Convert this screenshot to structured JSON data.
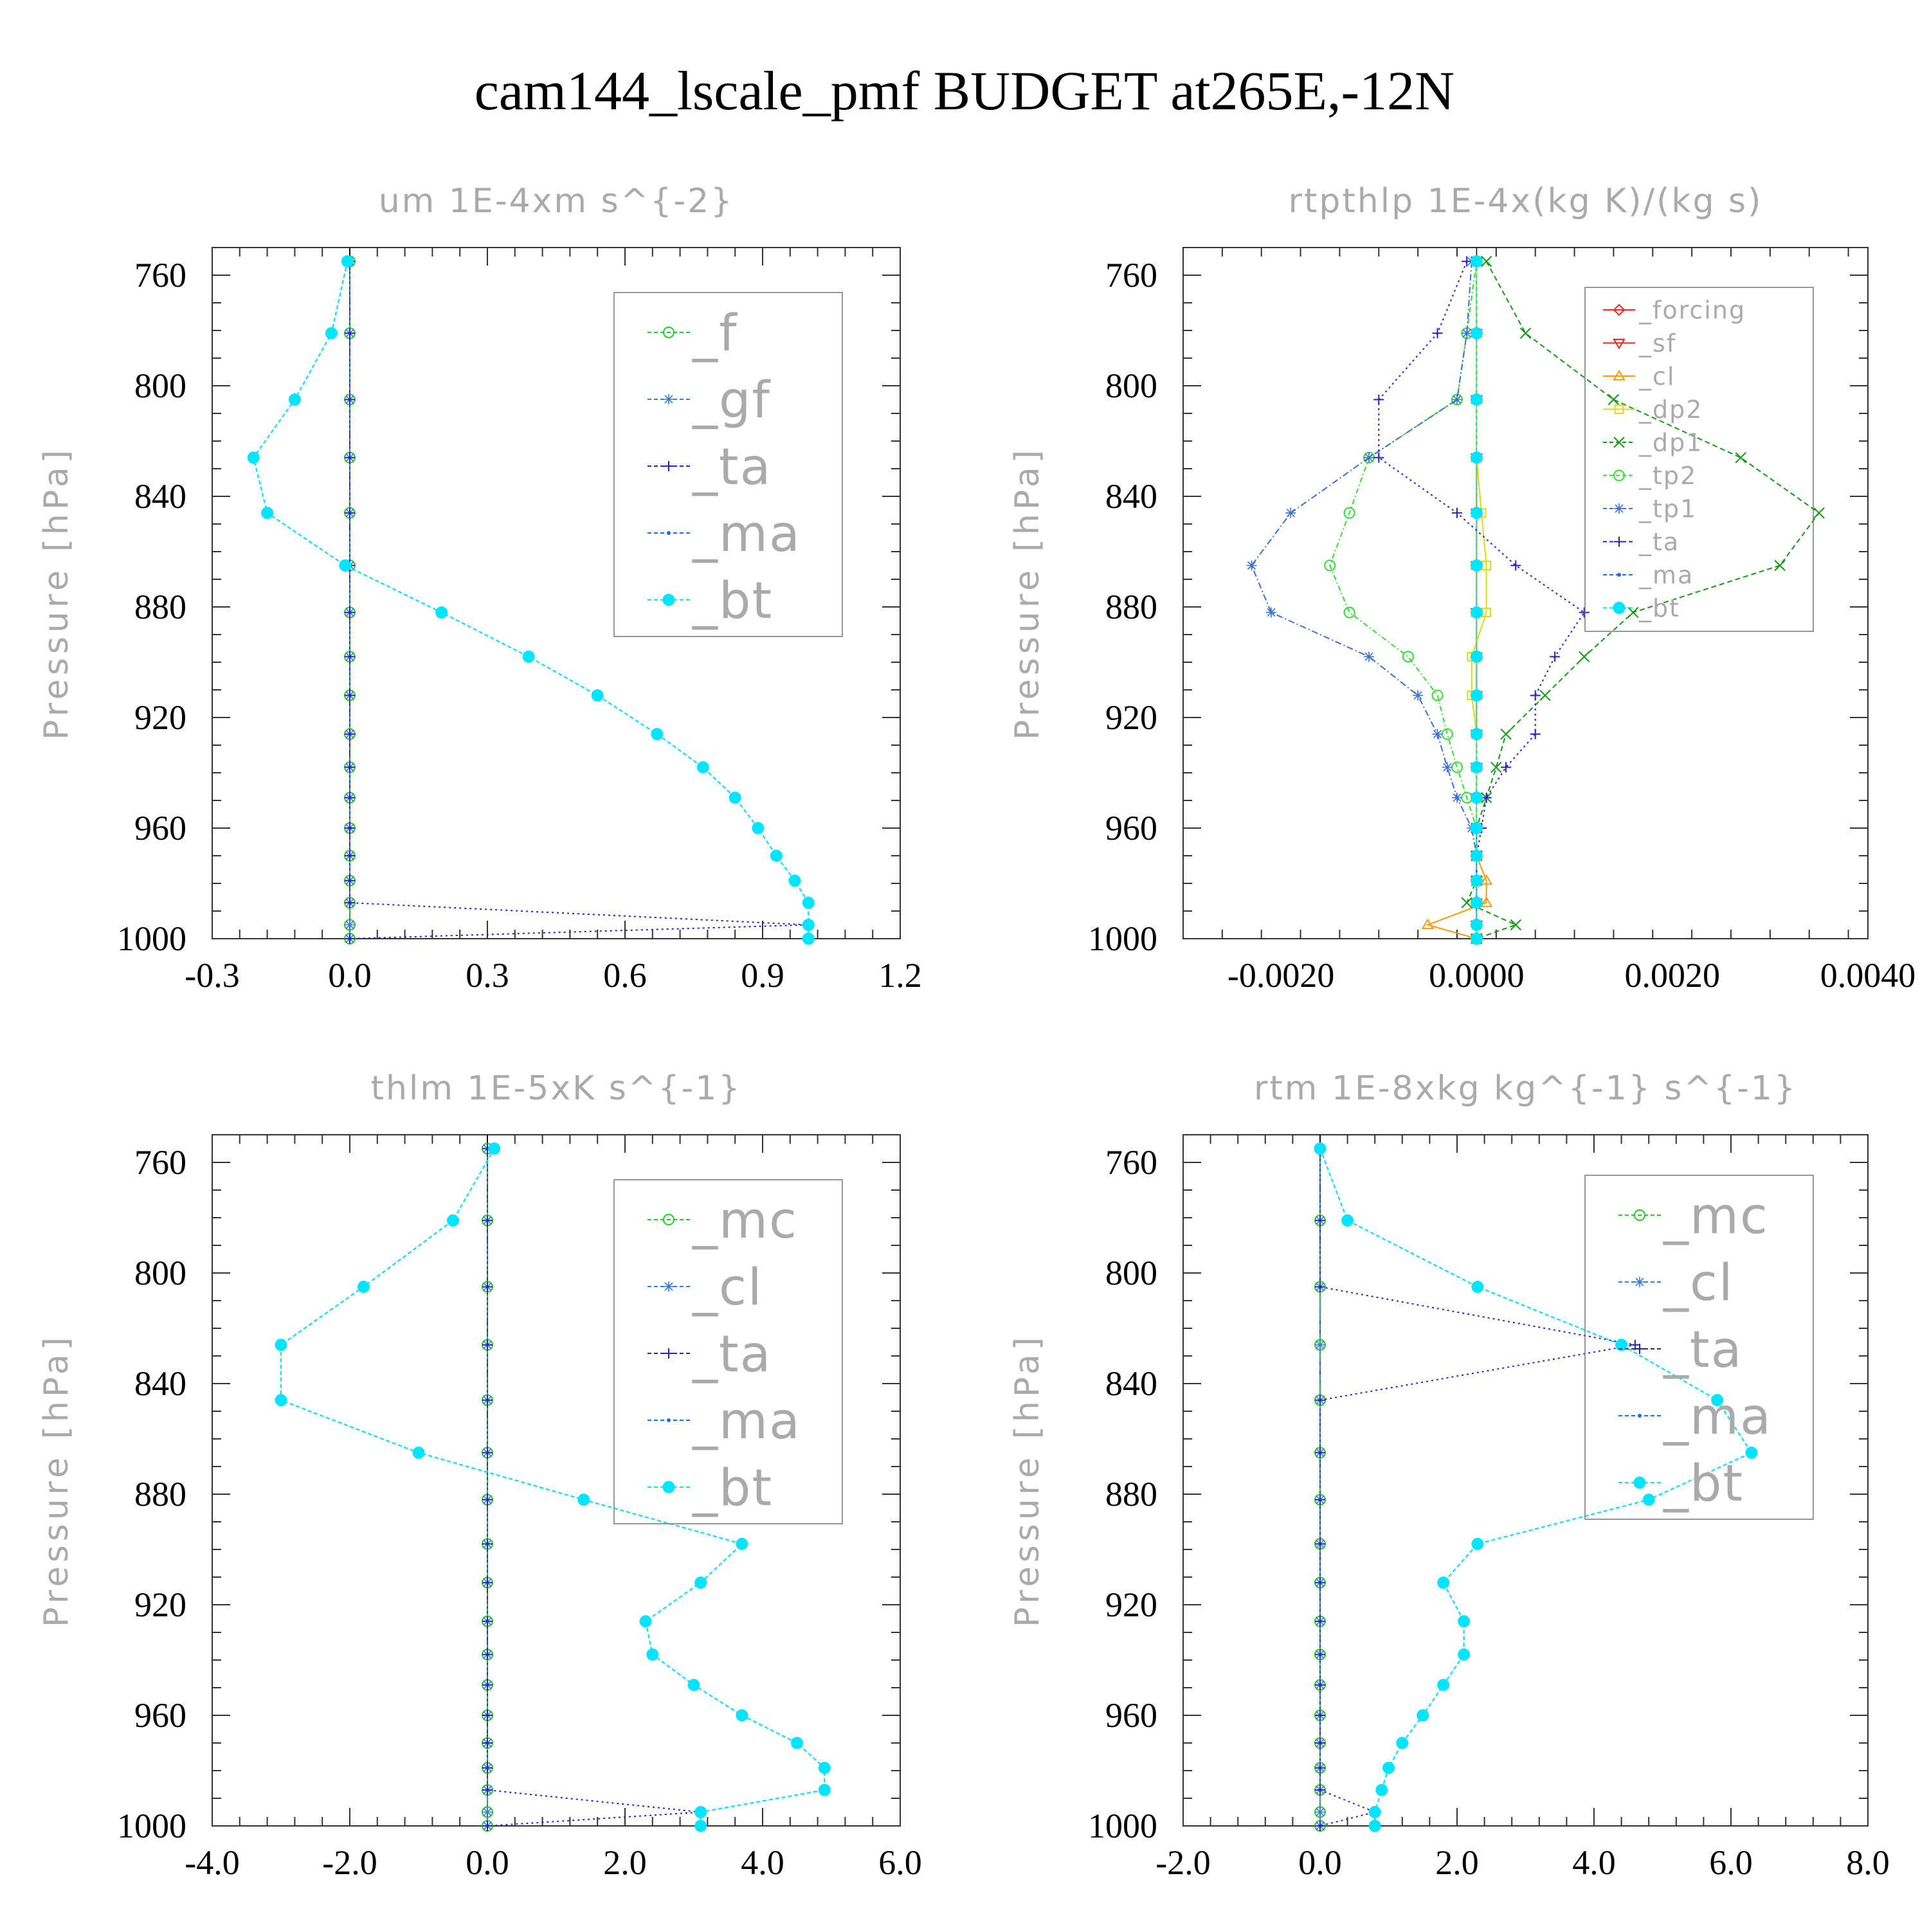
{
  "title": "cam144_lscale_pmf  BUDGET at265E,-12N",
  "colors": {
    "f": "#22cc22",
    "gf": "#3a7bd5",
    "ta": "#2222cc",
    "ma": "#1a6fe8",
    "bt": "#00e5ff",
    "forcing": "#ff2222",
    "sf": "#ee2222",
    "cl_orange": "#ff9900",
    "dp2": "#dddd00",
    "dp1": "#119911",
    "tp2": "#33dd33",
    "tp1": "#3a6fd5",
    "mc": "#22cc22",
    "cl": "#3a7bd5",
    "frame": "#333333",
    "title_gray": "#aaaaaa",
    "vline": "#000000"
  },
  "chart_data": [
    {
      "type": "line",
      "title": "um  1E-4xm s^{-2}",
      "ylabel": "Pressure [hPa]",
      "xlim": [
        -0.3,
        1.2
      ],
      "ylim": [
        1000,
        750
      ],
      "xticks": [
        "-0.3",
        "0.0",
        "0.3",
        "0.6",
        "0.9",
        "1.2"
      ],
      "yticks": [
        "760",
        "800",
        "840",
        "880",
        "920",
        "960",
        "1000"
      ],
      "pressure": [
        755,
        781,
        805,
        826,
        846,
        865,
        882,
        898,
        912,
        926,
        938,
        949,
        960,
        970,
        979,
        987,
        995,
        1000
      ],
      "series": [
        {
          "name": "_f",
          "color_key": "f",
          "marker": "circle",
          "dash": "10,6",
          "values": [
            0,
            0,
            0,
            0,
            0,
            0,
            0,
            0,
            0,
            0,
            0,
            0,
            0,
            0,
            0,
            0,
            0,
            0
          ]
        },
        {
          "name": "_gf",
          "color_key": "gf",
          "marker": "star",
          "dash": "8,5",
          "values": [
            0,
            0,
            0,
            0,
            0,
            0,
            0,
            0,
            0,
            0,
            0,
            0,
            0,
            0,
            0,
            0,
            0,
            0
          ]
        },
        {
          "name": "_ta",
          "color_key": "ta",
          "marker": "plus",
          "dash": "3,5",
          "values": [
            0,
            0,
            0,
            0,
            0,
            0,
            0,
            0,
            0,
            0,
            0,
            0,
            0,
            0,
            0,
            0,
            0.999,
            0
          ]
        },
        {
          "name": "_ma",
          "color_key": "ma",
          "marker": "dot",
          "dash": "6,4",
          "values": [
            -0.005,
            -0.04,
            -0.12,
            -0.21,
            -0.18,
            -0.01,
            0.2,
            0.39,
            0.54,
            0.67,
            0.77,
            0.84,
            0.89,
            0.93,
            0.97,
            1.0,
            1.0,
            1.0
          ]
        },
        {
          "name": "_bt",
          "color_key": "bt",
          "marker": "filled",
          "dash": "6,4",
          "values": [
            -0.005,
            -0.04,
            -0.12,
            -0.21,
            -0.18,
            -0.01,
            0.2,
            0.39,
            0.54,
            0.67,
            0.77,
            0.84,
            0.89,
            0.93,
            0.97,
            1.0,
            1.0,
            1.0
          ]
        }
      ],
      "legend": {
        "items": [
          "_f",
          "_gf",
          "_ta",
          "_ma",
          "_bt"
        ]
      }
    },
    {
      "type": "line",
      "title": "rtpthlp  1E-4x(kg K)/(kg s)",
      "ylabel": "Pressure [hPa]",
      "xlim": [
        -0.003,
        0.004
      ],
      "ylim": [
        1000,
        750
      ],
      "xticks": [
        "-0.0020",
        "0.0000",
        "0.0020",
        "0.0040"
      ],
      "yticks": [
        "760",
        "800",
        "840",
        "880",
        "920",
        "960",
        "1000"
      ],
      "pressure": [
        755,
        781,
        805,
        826,
        846,
        865,
        882,
        898,
        912,
        926,
        938,
        949,
        960,
        970,
        979,
        987,
        995,
        1000
      ],
      "series": [
        {
          "name": "_forcing",
          "color_key": "forcing",
          "marker": "diamond",
          "dash": "",
          "values": [
            0,
            0,
            0,
            0,
            0,
            0,
            0,
            0,
            0,
            0,
            0,
            0,
            0,
            0,
            0,
            0,
            0,
            0
          ]
        },
        {
          "name": "_sf",
          "color_key": "sf",
          "marker": "tri-down",
          "dash": "",
          "values": [
            0,
            0,
            0,
            0,
            0,
            0,
            0,
            0,
            0,
            0,
            0,
            0,
            0,
            0,
            0,
            0,
            0,
            0
          ]
        },
        {
          "name": "_cl",
          "color_key": "cl_orange",
          "marker": "tri-up",
          "dash": "",
          "values": [
            0,
            0,
            0,
            0,
            0,
            0,
            0,
            0,
            0,
            0,
            0,
            0,
            0,
            0,
            0.0001,
            0.0001,
            -0.0005,
            0
          ]
        },
        {
          "name": "_dp2",
          "color_key": "dp2",
          "marker": "square",
          "dash": "",
          "values": [
            0,
            0,
            0,
            0,
            5e-05,
            0.0001,
            0.0001,
            -5e-05,
            -5e-05,
            0,
            0,
            0,
            0,
            0,
            0,
            0,
            0,
            0
          ]
        },
        {
          "name": "_dp1",
          "color_key": "dp1",
          "marker": "x",
          "dash": "8,5",
          "values": [
            0.0001,
            0.0005,
            0.0014,
            0.0027,
            0.0035,
            0.0031,
            0.0016,
            0.0011,
            0.0007,
            0.0003,
            0.0002,
            0.0001,
            0,
            0,
            0,
            -0.0001,
            0.0004,
            0
          ]
        },
        {
          "name": "_tp2",
          "color_key": "tp2",
          "marker": "circle",
          "dash": "8,4,2,4",
          "values": [
            0,
            -0.0001,
            -0.0002,
            -0.0011,
            -0.0013,
            -0.0015,
            -0.0013,
            -0.0007,
            -0.0004,
            -0.0003,
            -0.0002,
            -0.0001,
            0,
            0,
            0,
            0,
            0,
            0
          ]
        },
        {
          "name": "_tp1",
          "color_key": "tp1",
          "marker": "star",
          "dash": "10,4,2,4",
          "values": [
            -5e-05,
            -0.0001,
            -0.0002,
            -0.0011,
            -0.0019,
            -0.0023,
            -0.0021,
            -0.0011,
            -0.0006,
            -0.0004,
            -0.0003,
            -0.0002,
            -5e-05,
            0,
            0,
            0,
            0,
            0
          ]
        },
        {
          "name": "_ta",
          "color_key": "ta",
          "marker": "plus",
          "dash": "3,5",
          "values": [
            -0.0001,
            -0.0004,
            -0.001,
            -0.001,
            -0.0002,
            0.0004,
            0.0011,
            0.0008,
            0.0006,
            0.0006,
            0.0003,
            0.0001,
            5e-05,
            0,
            0,
            0,
            0,
            0
          ]
        },
        {
          "name": "_ma",
          "color_key": "ma",
          "marker": "dot",
          "dash": "6,4",
          "values": [
            0,
            0,
            0,
            0,
            0,
            0,
            0,
            0,
            0,
            0,
            0,
            0,
            0,
            0,
            0,
            0,
            0,
            0
          ]
        },
        {
          "name": "_bt",
          "color_key": "bt",
          "marker": "filled",
          "dash": "6,4",
          "values": [
            0,
            0,
            0,
            0,
            0,
            0,
            0,
            0,
            0,
            0,
            0,
            0,
            0,
            0,
            0,
            0,
            0,
            0
          ]
        }
      ],
      "legend": {
        "items": [
          "_forcing",
          "_sf",
          "_cl",
          "_dp2",
          "_dp1",
          "_tp2",
          "_tp1",
          "_ta",
          "_ma",
          "_bt"
        ]
      }
    },
    {
      "type": "line",
      "title": "thlm  1E-5xK s^{-1}",
      "ylabel": "Pressure [hPa]",
      "xlim": [
        -4.0,
        6.0
      ],
      "ylim": [
        1000,
        750
      ],
      "xticks": [
        "-4.0",
        "-2.0",
        "0.0",
        "2.0",
        "4.0",
        "6.0"
      ],
      "yticks": [
        "760",
        "800",
        "840",
        "880",
        "920",
        "960",
        "1000"
      ],
      "pressure": [
        755,
        781,
        805,
        826,
        846,
        865,
        882,
        898,
        912,
        926,
        938,
        949,
        960,
        970,
        979,
        987,
        995,
        1000
      ],
      "series": [
        {
          "name": "_mc",
          "color_key": "mc",
          "marker": "circle",
          "dash": "10,6",
          "values": [
            0,
            0,
            0,
            0,
            0,
            0,
            0,
            0,
            0,
            0,
            0,
            0,
            0,
            0,
            0,
            0,
            0,
            0
          ]
        },
        {
          "name": "_cl",
          "color_key": "cl",
          "marker": "star",
          "dash": "8,5",
          "values": [
            0,
            0,
            0,
            0,
            0,
            0,
            0,
            0,
            0,
            0,
            0,
            0,
            0,
            0,
            0,
            0,
            0,
            0
          ]
        },
        {
          "name": "_ta",
          "color_key": "ta",
          "marker": "plus",
          "dash": "3,5",
          "values": [
            0,
            0,
            0,
            0,
            0,
            0,
            0,
            0,
            0,
            0,
            0,
            0,
            0,
            0,
            0,
            0,
            3.1,
            0
          ]
        },
        {
          "name": "_ma",
          "color_key": "ma",
          "marker": "dot",
          "dash": "6,4",
          "values": [
            0.1,
            -0.5,
            -1.8,
            -3.0,
            -3.0,
            -1.0,
            1.4,
            3.7,
            3.1,
            2.3,
            2.4,
            3.0,
            3.7,
            4.5,
            4.9,
            4.9,
            3.1,
            3.1
          ]
        },
        {
          "name": "_bt",
          "color_key": "bt",
          "marker": "filled",
          "dash": "6,4",
          "values": [
            0.1,
            -0.5,
            -1.8,
            -3.0,
            -3.0,
            -1.0,
            1.4,
            3.7,
            3.1,
            2.3,
            2.4,
            3.0,
            3.7,
            4.5,
            4.9,
            4.9,
            3.1,
            3.1
          ]
        }
      ],
      "legend": {
        "items": [
          "_mc",
          "_cl",
          "_ta",
          "_ma",
          "_bt"
        ]
      }
    },
    {
      "type": "line",
      "title": "rtm  1E-8xkg kg^{-1} s^{-1}",
      "ylabel": "Pressure [hPa]",
      "xlim": [
        -2.0,
        8.0
      ],
      "ylim": [
        1000,
        750
      ],
      "xticks": [
        "-2.0",
        "0.0",
        "2.0",
        "4.0",
        "6.0",
        "8.0"
      ],
      "yticks": [
        "760",
        "800",
        "840",
        "880",
        "920",
        "960",
        "1000"
      ],
      "pressure": [
        755,
        781,
        805,
        826,
        846,
        865,
        882,
        898,
        912,
        926,
        938,
        949,
        960,
        970,
        979,
        987,
        995,
        1000
      ],
      "series": [
        {
          "name": "_mc",
          "color_key": "mc",
          "marker": "circle",
          "dash": "10,6",
          "values": [
            0,
            0,
            0,
            0,
            0,
            0,
            0,
            0,
            0,
            0,
            0,
            0,
            0,
            0,
            0,
            0,
            0,
            0
          ]
        },
        {
          "name": "_cl",
          "color_key": "cl",
          "marker": "star",
          "dash": "8,5",
          "values": [
            0,
            0,
            0,
            0,
            0,
            0,
            0,
            0,
            0,
            0,
            0,
            0,
            0,
            0,
            0,
            0,
            0,
            0
          ]
        },
        {
          "name": "_ta",
          "color_key": "ta",
          "marker": "plus",
          "dash": "3,5",
          "values": [
            0,
            0,
            0,
            4.6,
            0,
            0,
            0,
            0,
            0,
            0,
            0,
            0,
            0,
            0,
            0,
            0,
            0.8,
            0
          ]
        },
        {
          "name": "_ma",
          "color_key": "ma",
          "marker": "dot",
          "dash": "6,4",
          "values": [
            0,
            0.4,
            2.3,
            4.4,
            5.8,
            6.3,
            4.8,
            2.3,
            1.8,
            2.1,
            2.1,
            1.8,
            1.5,
            1.2,
            1.0,
            0.9,
            0.8,
            0.8
          ]
        },
        {
          "name": "_bt",
          "color_key": "bt",
          "marker": "filled",
          "dash": "6,4",
          "values": [
            0,
            0.4,
            2.3,
            4.4,
            5.8,
            6.3,
            4.8,
            2.3,
            1.8,
            2.1,
            2.1,
            1.8,
            1.5,
            1.2,
            1.0,
            0.9,
            0.8,
            0.8
          ]
        }
      ],
      "legend": {
        "items": [
          "_mc",
          "_cl",
          "_ta",
          "_ma",
          "_bt"
        ]
      }
    }
  ]
}
